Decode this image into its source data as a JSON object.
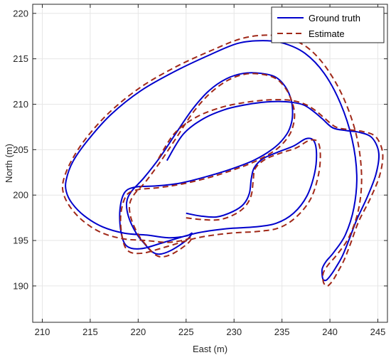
{
  "chart_data": {
    "type": "line",
    "xlabel": "East (m)",
    "ylabel": "North (m)",
    "xlim": [
      209,
      246
    ],
    "ylim": [
      186,
      221
    ],
    "xticks": [
      210,
      215,
      220,
      225,
      230,
      235,
      240,
      245
    ],
    "yticks": [
      190,
      195,
      200,
      205,
      210,
      215,
      220
    ],
    "grid": true,
    "legend_position": "top-right",
    "series": [
      {
        "name": "Ground truth",
        "color": "#0000cc",
        "style": "solid",
        "x": [
          225.0,
          226.5,
          228.2,
          229.9,
          231.0,
          231.6,
          231.8,
          232.1,
          233.0,
          234.5,
          236.2,
          237.5,
          238.3,
          238.6,
          238.4,
          237.6,
          236.2,
          234.4,
          232.2,
          229.2,
          226.0,
          222.7,
          220.3,
          218.8,
          218.2,
          218.1,
          218.6,
          219.8,
          221.8,
          224.3,
          227.0,
          229.8,
          232.2,
          234.3,
          235.5,
          236.0,
          236.1,
          235.9,
          235.3,
          234.3,
          232.8,
          231.0,
          229.2,
          227.4,
          225.7,
          224.0,
          222.3,
          220.6,
          219.3,
          218.8,
          219.0,
          219.8,
          220.7,
          221.4,
          222.2,
          223.4,
          225.0,
          225.6,
          225.0,
          223.2,
          220.9,
          218.6,
          216.3,
          214.4,
          213.1,
          212.5,
          212.5,
          213.2,
          214.8,
          217.2,
          220.3,
          223.8,
          227.4,
          230.4,
          233.0,
          235.2,
          237.4,
          239.4,
          241.1,
          242.3,
          242.8,
          242.5,
          241.6,
          240.4,
          239.6,
          239.2,
          239.2,
          239.3,
          239.5,
          239.7,
          240.1,
          240.6,
          241.3,
          242.0,
          242.8,
          243.9,
          244.8,
          245.1,
          244.4,
          243.1,
          241.7,
          240.3,
          239.2,
          238.3,
          237.3,
          236.1,
          234.6,
          232.9,
          231.0,
          229.0,
          226.8,
          224.7,
          223.0
        ],
        "y": [
          198.0,
          197.7,
          197.6,
          198.2,
          199.0,
          200.2,
          201.8,
          203.0,
          204.0,
          204.7,
          205.4,
          206.2,
          206.0,
          204.6,
          202.4,
          199.9,
          198.0,
          196.9,
          196.5,
          196.3,
          195.8,
          194.8,
          194.1,
          194.4,
          196.0,
          198.4,
          200.3,
          200.9,
          201.0,
          201.3,
          202.0,
          202.9,
          203.9,
          205.3,
          206.7,
          208.0,
          209.4,
          210.7,
          212.0,
          213.0,
          213.4,
          213.4,
          212.8,
          211.5,
          209.5,
          206.9,
          204.2,
          201.9,
          200.4,
          199.2,
          197.6,
          195.8,
          194.6,
          193.8,
          193.5,
          193.9,
          195.0,
          195.8,
          195.5,
          195.3,
          195.6,
          195.8,
          196.5,
          197.7,
          199.1,
          200.4,
          201.7,
          203.7,
          206.1,
          208.9,
          211.5,
          213.6,
          215.4,
          216.7,
          217.0,
          216.7,
          215.6,
          213.4,
          210.1,
          206.2,
          202.2,
          198.6,
          195.6,
          193.7,
          192.7,
          191.9,
          191.1,
          190.7,
          190.6,
          190.7,
          191.2,
          192.0,
          193.3,
          195.1,
          197.3,
          199.8,
          202.3,
          204.6,
          206.3,
          206.9,
          207.1,
          207.4,
          208.4,
          209.2,
          209.9,
          210.2,
          210.3,
          210.2,
          209.9,
          209.4,
          208.4,
          206.7,
          203.8
        ]
      },
      {
        "name": "Estimate",
        "color": "#a02818",
        "style": "dashed",
        "x": [
          225.0,
          226.7,
          228.5,
          230.1,
          231.2,
          231.8,
          232.0,
          232.2,
          233.2,
          234.8,
          236.5,
          237.8,
          238.7,
          239.0,
          238.8,
          238.0,
          236.5,
          234.7,
          232.5,
          229.5,
          226.2,
          222.9,
          220.4,
          218.9,
          218.3,
          218.2,
          218.8,
          220.0,
          222.0,
          224.5,
          227.3,
          230.0,
          232.4,
          234.5,
          235.7,
          236.2,
          236.3,
          236.0,
          235.4,
          234.4,
          232.9,
          231.1,
          229.3,
          227.5,
          225.8,
          224.1,
          222.4,
          220.8,
          219.6,
          219.1,
          219.3,
          220.1,
          221.0,
          221.7,
          222.5,
          223.7,
          225.2,
          225.6,
          225.0,
          223.1,
          220.8,
          218.4,
          216.1,
          214.2,
          212.9,
          212.2,
          212.2,
          213.0,
          214.6,
          217.1,
          220.3,
          223.9,
          227.6,
          230.7,
          233.3,
          235.5,
          237.7,
          239.7,
          241.5,
          242.8,
          243.3,
          243.0,
          242.0,
          240.7,
          239.8,
          239.3,
          239.3,
          239.5,
          239.7,
          239.9,
          240.3,
          240.8,
          241.5,
          242.2,
          243.0,
          244.2,
          245.2,
          245.5,
          244.8,
          243.4,
          242.0,
          240.6,
          239.4,
          238.5,
          237.4,
          236.1,
          234.5,
          232.7,
          230.6,
          228.5,
          226.1,
          223.8,
          222.0
        ],
        "y": [
          197.5,
          197.3,
          197.3,
          197.9,
          198.8,
          200.0,
          201.6,
          202.9,
          203.9,
          204.6,
          205.2,
          206.0,
          205.9,
          204.5,
          202.2,
          199.6,
          197.6,
          196.4,
          196.0,
          195.8,
          195.3,
          194.3,
          193.6,
          193.9,
          195.6,
          198.0,
          200.0,
          200.6,
          200.8,
          201.2,
          201.9,
          202.8,
          203.8,
          205.1,
          206.5,
          207.8,
          209.1,
          210.4,
          211.7,
          212.8,
          213.3,
          213.3,
          212.6,
          211.2,
          209.2,
          206.5,
          203.8,
          201.5,
          200.1,
          198.9,
          197.3,
          195.5,
          194.3,
          193.5,
          193.2,
          193.6,
          194.7,
          195.4,
          195.1,
          194.8,
          195.0,
          195.2,
          195.9,
          197.2,
          198.7,
          200.2,
          201.6,
          203.7,
          206.3,
          209.2,
          211.9,
          214.1,
          215.9,
          217.2,
          217.6,
          217.3,
          216.2,
          213.9,
          210.5,
          206.4,
          202.2,
          198.5,
          195.4,
          193.4,
          192.3,
          191.4,
          190.5,
          190.1,
          190.0,
          190.1,
          190.6,
          191.5,
          192.9,
          194.8,
          197.1,
          199.6,
          202.2,
          204.6,
          206.4,
          207.0,
          207.2,
          207.5,
          208.5,
          209.3,
          210.0,
          210.4,
          210.5,
          210.4,
          210.1,
          209.6,
          208.6,
          206.8,
          203.8
        ]
      }
    ]
  }
}
